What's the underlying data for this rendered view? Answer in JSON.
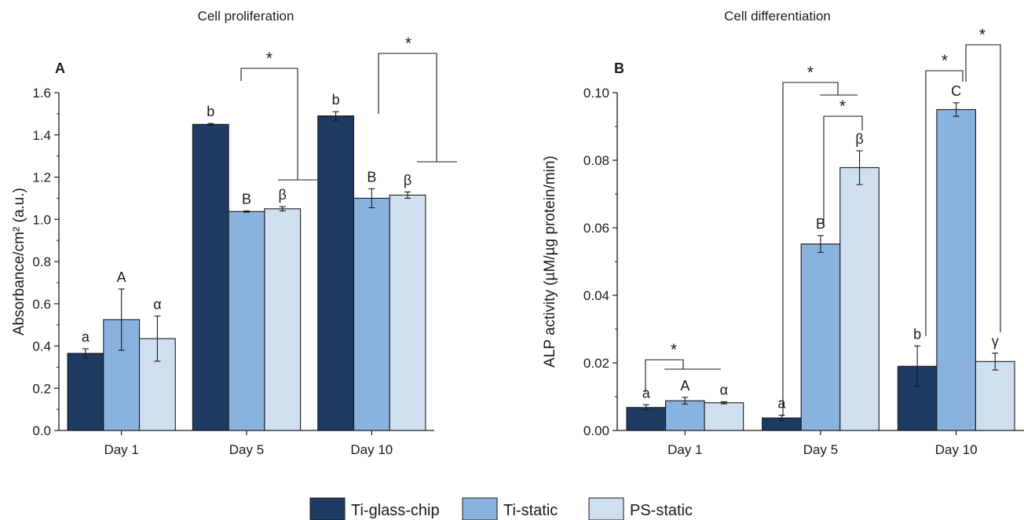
{
  "colors": {
    "Ti-glass-chip": "#1d3b63",
    "Ti-static": "#8ab2de",
    "PS-static": "#cfdfef",
    "axis": "#1a1a1a"
  },
  "legend": {
    "placement": "bottom-center",
    "entries": [
      "Ti-glass-chip",
      "Ti-static",
      "PS-static"
    ]
  },
  "chart_data": [
    {
      "type": "bar",
      "panel_label": "A",
      "title": "Cell proliferation",
      "xlabel": "",
      "ylabel": "Absorbance/cm² (a.u.)",
      "ylim": [
        0,
        1.6
      ],
      "yticks": [
        "0.0",
        "0.2",
        "0.4",
        "0.6",
        "0.8",
        "1.0",
        "1.2",
        "1.4",
        "1.6"
      ],
      "grid": false,
      "categories": [
        "Day 1",
        "Day 5",
        "Day 10"
      ],
      "series": [
        {
          "name": "Ti-glass-chip",
          "values": [
            0.365,
            1.45,
            1.49
          ],
          "errors": [
            0.022,
            0.004,
            0.02
          ],
          "letters": [
            "a",
            "b",
            "b"
          ]
        },
        {
          "name": "Ti-static",
          "values": [
            0.525,
            1.037,
            1.1
          ],
          "errors": [
            0.145,
            0.003,
            0.045
          ],
          "letters": [
            "A",
            "B",
            "B"
          ]
        },
        {
          "name": "PS-static",
          "values": [
            0.435,
            1.05,
            1.115
          ],
          "errors": [
            0.107,
            0.01,
            0.015
          ],
          "letters": [
            "α",
            "β",
            "β"
          ]
        }
      ],
      "significance": [
        {
          "category": "Day 5",
          "label": "*",
          "compare": "Ti-glass-chip vs Ti-static + PS-static"
        },
        {
          "category": "Day 10",
          "label": "*",
          "compare": "Ti-glass-chip vs Ti-static + PS-static"
        }
      ]
    },
    {
      "type": "bar",
      "panel_label": "B",
      "title": "Cell differentiation",
      "xlabel": "",
      "ylabel": "ALP activity (µM/µg protein/min)",
      "ylim": [
        0,
        0.1
      ],
      "yticks": [
        "0.00",
        "0.02",
        "0.04",
        "0.06",
        "0.08",
        "0.10"
      ],
      "grid": false,
      "categories": [
        "Day 1",
        "Day 5",
        "Day 10"
      ],
      "series": [
        {
          "name": "Ti-glass-chip",
          "values": [
            0.0068,
            0.0037,
            0.019
          ],
          "errors": [
            0.0008,
            0.0008,
            0.006
          ],
          "letters": [
            "a",
            "a",
            "b"
          ]
        },
        {
          "name": "Ti-static",
          "values": [
            0.0088,
            0.0552,
            0.095
          ],
          "errors": [
            0.001,
            0.0025,
            0.002
          ],
          "letters": [
            "A",
            "B",
            "C"
          ]
        },
        {
          "name": "PS-static",
          "values": [
            0.0082,
            0.0778,
            0.0204
          ],
          "errors": [
            0.0003,
            0.005,
            0.0025
          ],
          "letters": [
            "α",
            "β",
            "γ"
          ]
        }
      ],
      "significance": [
        {
          "category": "Day 1",
          "label": "*",
          "compare": "Ti-glass-chip vs Ti-static + PS-static"
        },
        {
          "category": "Day 5",
          "label": "*",
          "compare": "Ti-glass-chip vs Ti-static + PS-static"
        },
        {
          "category": "Day 5",
          "label": "*",
          "compare": "Ti-static vs PS-static"
        },
        {
          "category": "Day 10",
          "label": "*",
          "compare": "Ti-glass-chip vs Ti-static"
        },
        {
          "category": "Day 10",
          "label": "*",
          "compare": "Ti-static vs PS-static"
        }
      ]
    }
  ]
}
